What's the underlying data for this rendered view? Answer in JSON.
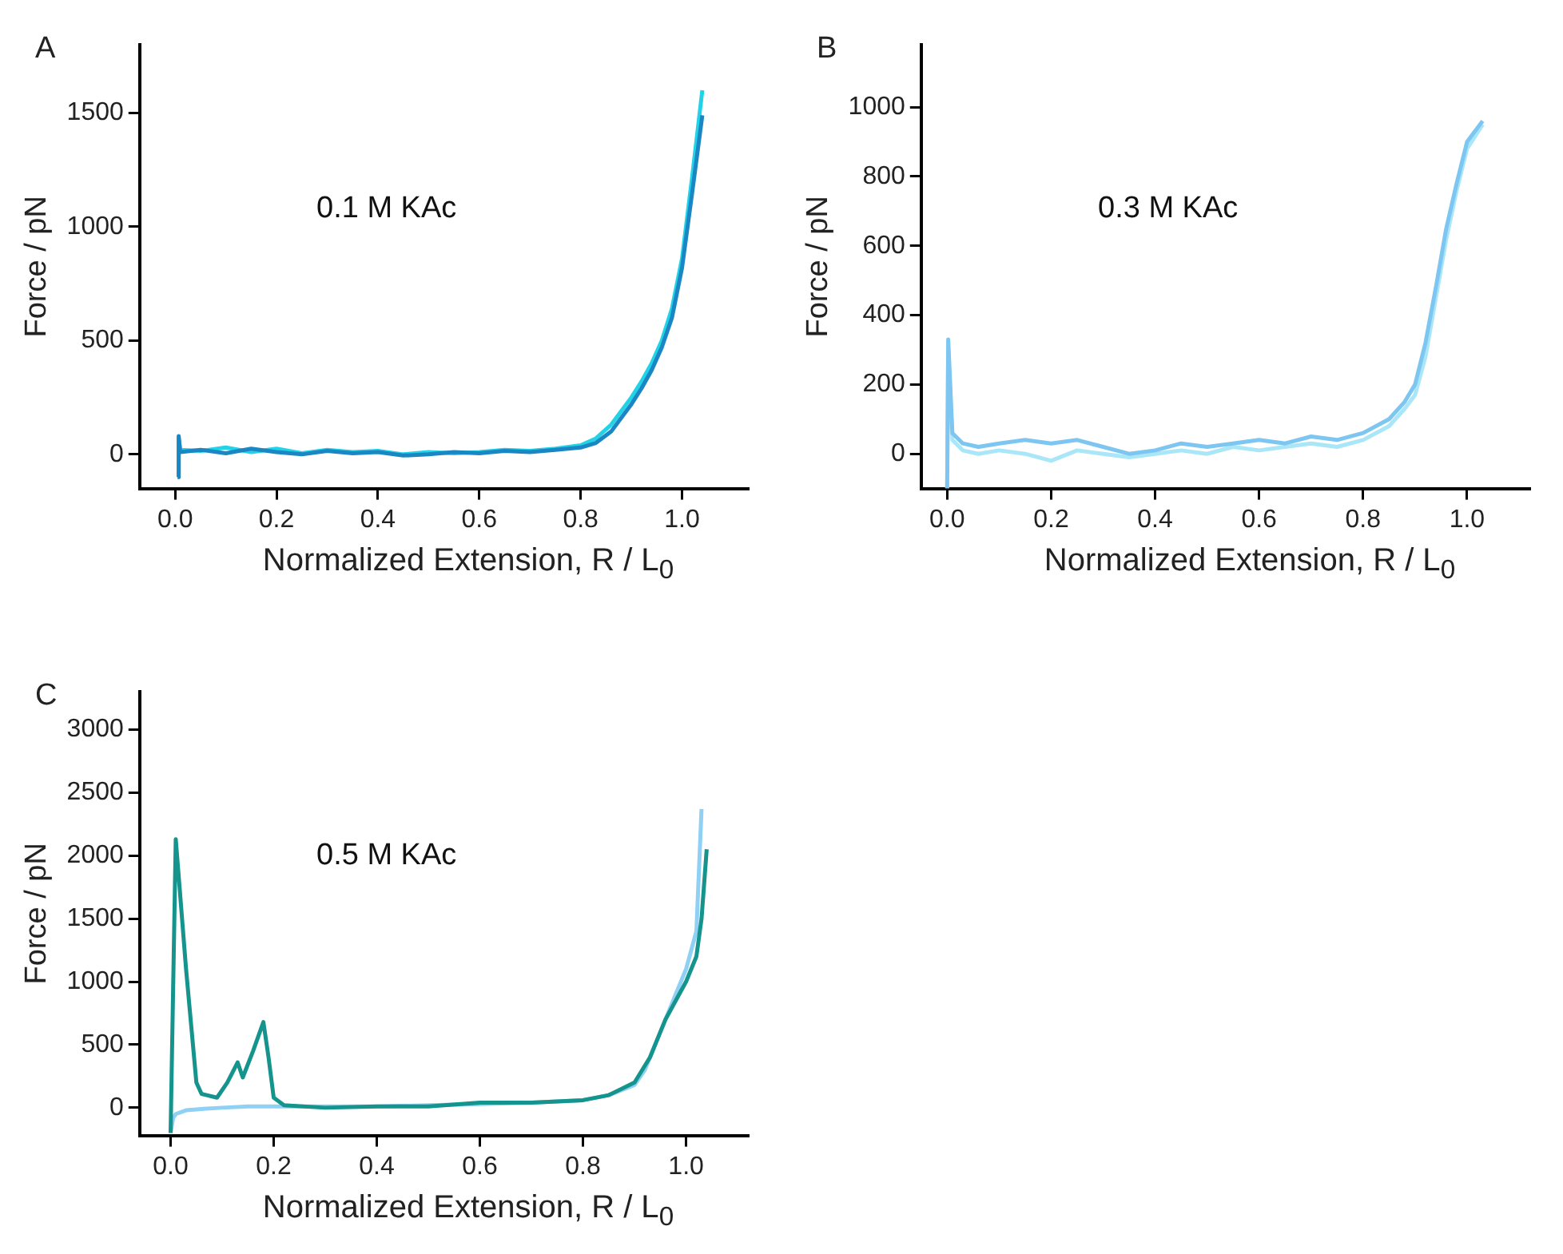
{
  "chart_data": [
    {
      "type": "line",
      "title": "A",
      "xlabel": "Normalized Extension, R / L$_{0}$",
      "ylabel": "Force / pN",
      "annotations": [
        "0.1 M KAc"
      ],
      "grid": false,
      "legend": false,
      "marker": "none",
      "xlim": [
        -0.07,
        1.13
      ],
      "ylim": [
        -150,
        1800
      ],
      "xticks": [
        {
          "value": 0,
          "label": "0.0"
        },
        {
          "value": 0.2,
          "label": "0.2"
        },
        {
          "value": 0.4,
          "label": "0.4"
        },
        {
          "value": 0.6,
          "label": "0.6"
        },
        {
          "value": 0.8,
          "label": "0.8"
        },
        {
          "value": 1,
          "label": "1.0"
        }
      ],
      "yticks": [
        0,
        500,
        1000,
        1500
      ],
      "series": [
        {
          "color": "#22d3e8",
          "x": [
            0.005,
            0.007,
            0.01,
            0.05,
            0.1,
            0.15,
            0.2,
            0.25,
            0.3,
            0.35,
            0.4,
            0.45,
            0.5,
            0.55,
            0.6,
            0.65,
            0.7,
            0.75,
            0.8,
            0.83,
            0.86,
            0.88,
            0.9,
            0.92,
            0.94,
            0.96,
            0.98,
            1.0,
            1.02,
            1.04
          ],
          "values": [
            -100,
            70,
            20,
            15,
            30,
            10,
            25,
            5,
            20,
            10,
            15,
            0,
            10,
            5,
            10,
            20,
            15,
            25,
            40,
            70,
            130,
            190,
            250,
            320,
            400,
            500,
            640,
            860,
            1220,
            1600
          ]
        },
        {
          "color": "#1a86c4",
          "x": [
            0.005,
            0.007,
            0.01,
            0.05,
            0.1,
            0.15,
            0.2,
            0.25,
            0.3,
            0.35,
            0.4,
            0.45,
            0.5,
            0.55,
            0.6,
            0.65,
            0.7,
            0.75,
            0.8,
            0.83,
            0.86,
            0.88,
            0.9,
            0.92,
            0.94,
            0.96,
            0.98,
            1.0,
            1.02,
            1.04
          ],
          "values": [
            -100,
            80,
            10,
            20,
            5,
            25,
            10,
            0,
            15,
            5,
            10,
            -5,
            0,
            10,
            5,
            15,
            10,
            20,
            30,
            50,
            100,
            160,
            220,
            290,
            370,
            470,
            600,
            820,
            1150,
            1490
          ]
        }
      ]
    },
    {
      "type": "line",
      "title": "B",
      "xlabel": "Normalized Extension, R / L$_{0}$",
      "ylabel": "Force / pN",
      "annotations": [
        "0.3 M KAc"
      ],
      "grid": false,
      "legend": false,
      "marker": "none",
      "xlim": [
        -0.05,
        1.12
      ],
      "ylim": [
        -100,
        1180
      ],
      "xticks": [
        {
          "value": 0,
          "label": "0.0"
        },
        {
          "value": 0.2,
          "label": "0.2"
        },
        {
          "value": 0.4,
          "label": "0.4"
        },
        {
          "value": 0.6,
          "label": "0.6"
        },
        {
          "value": 0.8,
          "label": "0.8"
        },
        {
          "value": 1,
          "label": "1.0"
        }
      ],
      "yticks": [
        0,
        200,
        400,
        600,
        800,
        1000
      ],
      "series": [
        {
          "color": "#a8e6f8",
          "x": [
            0.0,
            0.002,
            0.01,
            0.03,
            0.06,
            0.1,
            0.15,
            0.2,
            0.25,
            0.3,
            0.35,
            0.4,
            0.45,
            0.5,
            0.55,
            0.6,
            0.65,
            0.7,
            0.75,
            0.8,
            0.85,
            0.88,
            0.9,
            0.92,
            0.94,
            0.96,
            0.98,
            1.0,
            1.03
          ],
          "values": [
            -100,
            300,
            40,
            10,
            0,
            10,
            0,
            -20,
            10,
            0,
            -10,
            0,
            10,
            0,
            20,
            10,
            20,
            30,
            20,
            40,
            80,
            130,
            170,
            280,
            450,
            620,
            760,
            880,
            950
          ]
        },
        {
          "color": "#7ec6f2",
          "x": [
            0.0,
            0.002,
            0.01,
            0.03,
            0.06,
            0.1,
            0.15,
            0.2,
            0.25,
            0.3,
            0.35,
            0.4,
            0.45,
            0.5,
            0.55,
            0.6,
            0.65,
            0.7,
            0.75,
            0.8,
            0.85,
            0.88,
            0.9,
            0.92,
            0.94,
            0.96,
            0.98,
            1.0,
            1.03
          ],
          "values": [
            -100,
            330,
            60,
            30,
            20,
            30,
            40,
            30,
            40,
            20,
            0,
            10,
            30,
            20,
            30,
            40,
            30,
            50,
            40,
            60,
            100,
            150,
            200,
            320,
            480,
            650,
            780,
            900,
            960
          ]
        }
      ]
    },
    {
      "type": "line",
      "title": "C",
      "xlabel": "Normalized Extension, R / L$_{0}$",
      "ylabel": "Force / pN",
      "annotations": [
        "0.5 M KAc"
      ],
      "grid": false,
      "legend": false,
      "marker": "none",
      "xlim": [
        -0.06,
        1.12
      ],
      "ylim": [
        -220,
        3300
      ],
      "xticks": [
        {
          "value": 0,
          "label": "0.0"
        },
        {
          "value": 0.2,
          "label": "0.2"
        },
        {
          "value": 0.4,
          "label": "0.4"
        },
        {
          "value": 0.6,
          "label": "0.6"
        },
        {
          "value": 0.8,
          "label": "0.8"
        },
        {
          "value": 1,
          "label": "1.0"
        }
      ],
      "yticks": [
        0,
        500,
        1000,
        1500,
        2000,
        2500,
        3000
      ],
      "series": [
        {
          "color": "#8fd0f5",
          "x": [
            0.0,
            0.005,
            0.01,
            0.03,
            0.06,
            0.1,
            0.15,
            0.2,
            0.3,
            0.4,
            0.5,
            0.6,
            0.7,
            0.8,
            0.85,
            0.9,
            0.92,
            0.95,
            0.98,
            1.0,
            1.02,
            1.03
          ],
          "values": [
            -200,
            -80,
            -50,
            -20,
            -10,
            0,
            10,
            10,
            10,
            10,
            20,
            30,
            40,
            60,
            100,
            180,
            300,
            600,
            900,
            1100,
            1400,
            2370
          ]
        },
        {
          "color": "#14948c",
          "x": [
            0.0,
            0.01,
            0.03,
            0.05,
            0.06,
            0.09,
            0.11,
            0.13,
            0.14,
            0.16,
            0.18,
            0.19,
            0.2,
            0.22,
            0.3,
            0.4,
            0.5,
            0.6,
            0.7,
            0.8,
            0.85,
            0.9,
            0.93,
            0.96,
            1.0,
            1.02,
            1.03,
            1.04
          ],
          "values": [
            -200,
            2130,
            1100,
            200,
            110,
            80,
            200,
            360,
            240,
            450,
            680,
            400,
            80,
            20,
            0,
            10,
            10,
            40,
            40,
            60,
            100,
            200,
            400,
            700,
            1000,
            1200,
            1500,
            2050
          ]
        }
      ]
    }
  ]
}
